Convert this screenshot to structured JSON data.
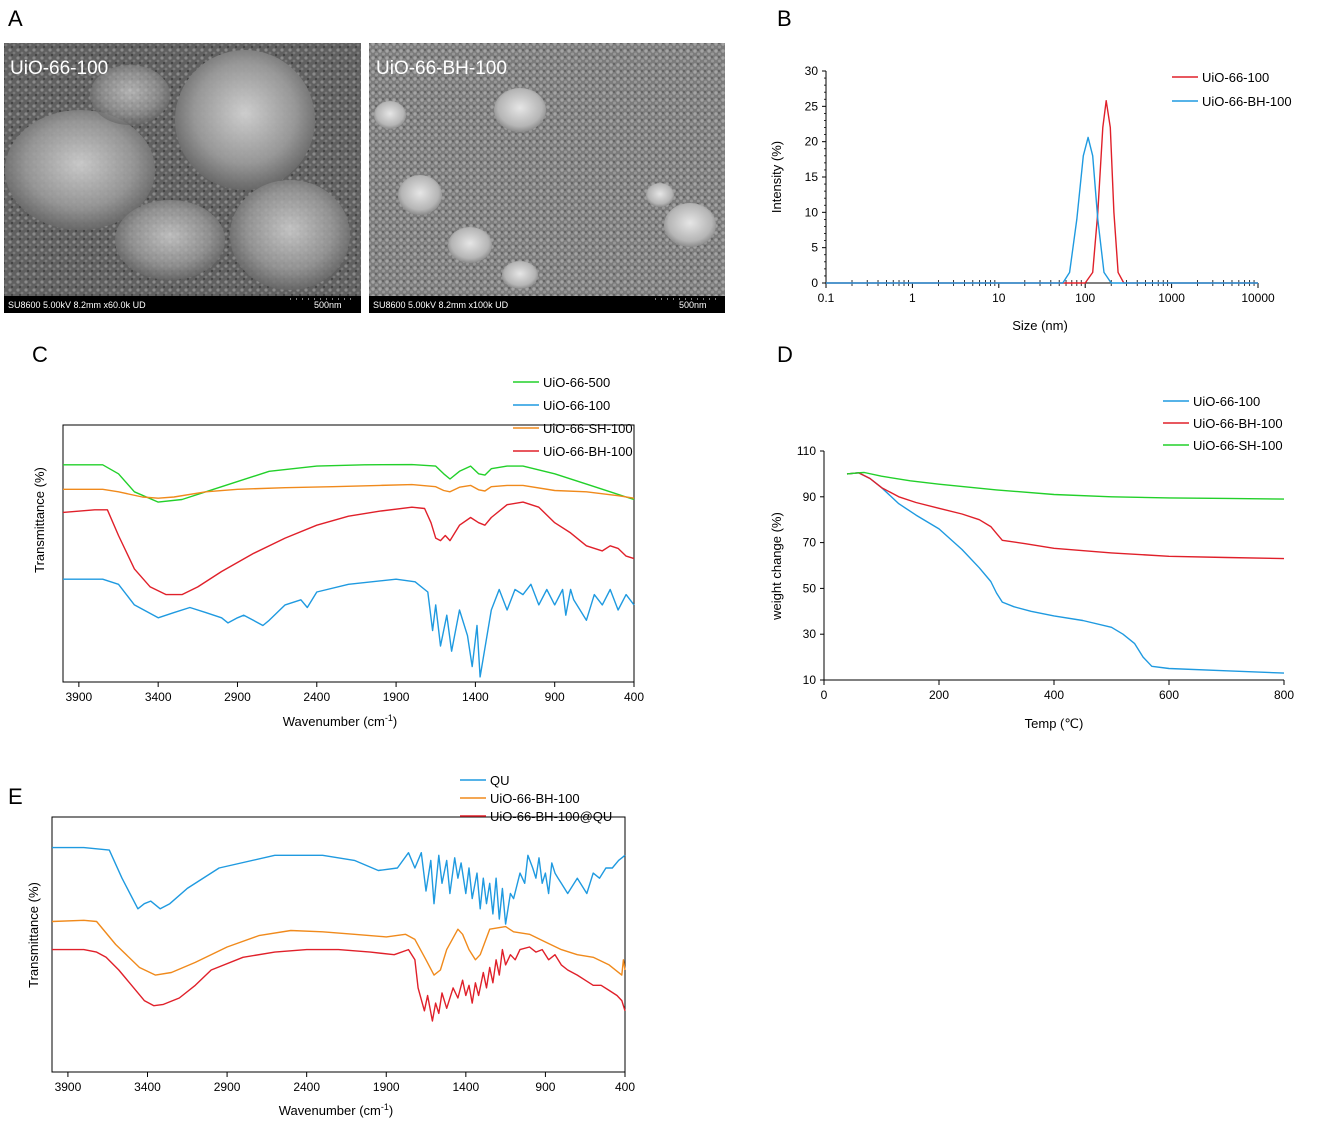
{
  "panels": {
    "A": "A",
    "B": "B",
    "C": "C",
    "D": "D",
    "E": "E"
  },
  "sem": [
    {
      "label": "UiO-66-100",
      "info": "SU8600 5.00kV 8.2mm x60.0k UD",
      "scale": "500nm"
    },
    {
      "label": "UiO-66-BH-100",
      "info": "SU8600 5.00kV 8.2mm x100k UD",
      "scale": "500nm"
    }
  ],
  "colors": {
    "red": "#e0202a",
    "blue": "#1f9ae0",
    "green": "#22d02a",
    "orange": "#f08a1c"
  },
  "chart_data": [
    {
      "panel": "B",
      "type": "line",
      "xlabel": "Size (nm)",
      "ylabel": "Intensity (%)",
      "xscale": "log",
      "xlim": [
        0.1,
        10000
      ],
      "ylim": [
        0,
        30
      ],
      "xticks": [
        "0.1",
        "1",
        "10",
        "100",
        "1000",
        "10000"
      ],
      "yticks": [
        "0",
        "5",
        "10",
        "15",
        "20",
        "25",
        "30"
      ],
      "legend": "top-right",
      "series": [
        {
          "name": "UiO-66-100",
          "color": "#e0202a",
          "x": [
            0.1,
            100,
            122,
            140,
            160,
            175,
            195,
            215,
            240,
            280,
            10000
          ],
          "y": [
            0,
            0,
            1.5,
            10,
            22,
            25.8,
            22,
            10,
            1.5,
            0,
            0
          ]
        },
        {
          "name": "UiO-66-BH-100",
          "color": "#1f9ae0",
          "x": [
            0.1,
            55,
            66,
            80,
            95,
            108,
            122,
            140,
            165,
            200,
            10000
          ],
          "y": [
            0,
            0,
            1.5,
            9,
            18,
            20.6,
            18,
            9,
            1.5,
            0,
            0
          ]
        }
      ]
    },
    {
      "panel": "C",
      "type": "line",
      "xlabel": "Wavenumber (cm",
      "xlabel_sup": "-1",
      "xlabel_tail": ")",
      "ylabel": "Transmittance (%)",
      "xlim": [
        4000,
        400
      ],
      "ylim": [
        0,
        100
      ],
      "xticks": [
        "3900",
        "3400",
        "2900",
        "2400",
        "1900",
        "1400",
        "900",
        "400"
      ],
      "legend": "top-right",
      "series": [
        {
          "name": "UiO-66-500",
          "color": "#22d02a",
          "x": [
            4000,
            3750,
            3650,
            3550,
            3400,
            3250,
            3000,
            2700,
            2400,
            2100,
            1800,
            1650,
            1600,
            1560,
            1500,
            1430,
            1380,
            1340,
            1300,
            1200,
            1100,
            900,
            700,
            550,
            450,
            400
          ],
          "y": [
            84.5,
            84.5,
            81,
            74,
            70,
            71,
            76,
            82,
            84,
            84.5,
            84.6,
            84,
            81,
            79,
            82,
            84,
            81,
            80.5,
            83,
            84,
            84,
            81,
            77,
            74,
            72,
            71
          ]
        },
        {
          "name": "UiO-66-100",
          "color": "#1f9ae0",
          "x": [
            4000,
            3750,
            3650,
            3550,
            3400,
            3300,
            3200,
            3100,
            3000,
            2960,
            2900,
            2860,
            2800,
            2740,
            2700,
            2600,
            2500,
            2460,
            2400,
            2200,
            1900,
            1780,
            1700,
            1670,
            1650,
            1620,
            1580,
            1550,
            1500,
            1450,
            1420,
            1390,
            1370,
            1300,
            1250,
            1200,
            1150,
            1100,
            1050,
            1000,
            950,
            900,
            850,
            830,
            800,
            780,
            700,
            650,
            600,
            550,
            500,
            450,
            400
          ],
          "y": [
            40,
            40,
            38,
            30,
            25,
            27,
            29,
            27,
            25,
            23,
            25,
            26,
            24,
            22,
            24,
            30,
            32,
            29,
            35,
            38,
            40,
            39,
            35,
            20,
            30,
            14,
            26,
            12,
            28,
            18,
            6,
            22,
            2,
            28,
            36,
            28,
            36,
            34,
            38,
            30,
            36,
            30,
            36,
            26,
            36,
            32,
            24,
            34,
            30,
            36,
            28,
            34,
            30
          ]
        },
        {
          "name": "UiO-66-SH-100",
          "color": "#f08a1c",
          "x": [
            4000,
            3750,
            3650,
            3500,
            3400,
            3300,
            3100,
            2900,
            2600,
            2300,
            2000,
            1800,
            1650,
            1600,
            1560,
            1500,
            1430,
            1380,
            1340,
            1300,
            1200,
            1100,
            900,
            700,
            500,
            400
          ],
          "y": [
            75,
            75,
            74,
            72,
            71.5,
            72,
            74,
            75,
            75.6,
            76,
            76.5,
            76.8,
            76,
            74.5,
            74,
            75.8,
            76.5,
            74.8,
            74.3,
            76,
            76.5,
            76.5,
            74.5,
            74,
            72.5,
            71.5
          ]
        },
        {
          "name": "UiO-66-BH-100",
          "color": "#e0202a",
          "x": [
            4000,
            3800,
            3720,
            3650,
            3550,
            3450,
            3350,
            3250,
            3150,
            3000,
            2800,
            2600,
            2400,
            2200,
            2000,
            1800,
            1720,
            1680,
            1650,
            1620,
            1590,
            1560,
            1500,
            1430,
            1380,
            1340,
            1300,
            1200,
            1100,
            1000,
            900,
            800,
            700,
            600,
            550,
            500,
            450,
            400
          ],
          "y": [
            66,
            67,
            67,
            57,
            44,
            37,
            34,
            34,
            37,
            43,
            50,
            56,
            61,
            64.5,
            66.5,
            68,
            67.5,
            62,
            56,
            55,
            57,
            55,
            61,
            64,
            62,
            61,
            64,
            69,
            70,
            68,
            62,
            58,
            53,
            51,
            53,
            52,
            49,
            48
          ]
        }
      ]
    },
    {
      "panel": "D",
      "type": "line",
      "xlabel": "Temp (℃)",
      "ylabel": "weight change (%)",
      "xlim": [
        0,
        800
      ],
      "ylim": [
        10,
        110
      ],
      "xticks": [
        "0",
        "200",
        "400",
        "600",
        "800"
      ],
      "yticks": [
        "10",
        "30",
        "50",
        "70",
        "90",
        "110"
      ],
      "legend": "top-right",
      "series": [
        {
          "name": "UiO-66-100",
          "color": "#1f9ae0",
          "x": [
            40,
            60,
            80,
            100,
            130,
            160,
            200,
            240,
            270,
            290,
            300,
            310,
            330,
            360,
            400,
            450,
            500,
            520,
            540,
            555,
            570,
            600,
            700,
            800
          ],
          "y": [
            100,
            100.5,
            98,
            94,
            87,
            82,
            76,
            67,
            59,
            53,
            48,
            44,
            42,
            40,
            38,
            36,
            33,
            30,
            26,
            20,
            16,
            15,
            14,
            13
          ]
        },
        {
          "name": "UiO-66-BH-100",
          "color": "#e0202a",
          "x": [
            40,
            60,
            80,
            100,
            130,
            160,
            200,
            240,
            270,
            290,
            300,
            310,
            350,
            400,
            500,
            600,
            700,
            800
          ],
          "y": [
            100,
            100.5,
            98,
            94,
            90,
            87.5,
            85,
            82.5,
            80,
            77,
            74,
            71,
            69.5,
            67.5,
            65.5,
            64,
            63.5,
            63
          ]
        },
        {
          "name": "UiO-66-SH-100",
          "color": "#22d02a",
          "x": [
            40,
            60,
            70,
            100,
            150,
            200,
            300,
            400,
            500,
            600,
            700,
            800
          ],
          "y": [
            100,
            100.5,
            100.6,
            99,
            97,
            95.5,
            93,
            91,
            90,
            89.5,
            89.3,
            89
          ]
        }
      ]
    },
    {
      "panel": "E",
      "type": "line",
      "xlabel": "Wavenumber (cm",
      "xlabel_sup": "-1",
      "xlabel_tail": ")",
      "ylabel": "Transmittance (%)",
      "xlim": [
        4000,
        400
      ],
      "ylim": [
        0,
        100
      ],
      "xticks": [
        "3900",
        "3400",
        "2900",
        "2400",
        "1900",
        "1400",
        "900",
        "400"
      ],
      "legend": "top-right",
      "series": [
        {
          "name": "QU",
          "color": "#1f9ae0",
          "x": [
            4000,
            3800,
            3640,
            3560,
            3460,
            3420,
            3380,
            3320,
            3260,
            3150,
            2950,
            2600,
            2300,
            2100,
            1950,
            1830,
            1760,
            1720,
            1680,
            1650,
            1620,
            1600,
            1570,
            1550,
            1520,
            1500,
            1470,
            1450,
            1430,
            1400,
            1380,
            1360,
            1330,
            1310,
            1290,
            1270,
            1250,
            1230,
            1210,
            1190,
            1170,
            1150,
            1120,
            1100,
            1060,
            1030,
            1010,
            980,
            960,
            940,
            920,
            900,
            880,
            860,
            840,
            820,
            800,
            760,
            700,
            640,
            600,
            560,
            520,
            480,
            440,
            400
          ],
          "y": [
            88,
            88,
            87,
            76,
            64,
            66,
            67,
            64,
            66,
            72,
            80,
            85,
            85,
            83,
            79,
            80,
            86,
            80,
            86,
            71,
            83,
            66,
            85,
            74,
            83,
            70,
            84,
            76,
            82,
            70,
            80,
            68,
            78,
            64,
            76,
            66,
            74,
            62,
            76,
            60,
            72,
            58,
            70,
            68,
            78,
            74,
            85,
            80,
            76,
            84,
            74,
            78,
            70,
            82,
            78,
            76,
            74,
            70,
            76,
            70,
            78,
            76,
            80,
            80,
            83,
            85
          ]
        },
        {
          "name": "UiO-66-BH-100",
          "color": "#f08a1c",
          "x": [
            4000,
            3800,
            3720,
            3600,
            3450,
            3350,
            3250,
            3100,
            2900,
            2700,
            2500,
            2300,
            2100,
            1900,
            1780,
            1720,
            1650,
            1600,
            1560,
            1520,
            1450,
            1420,
            1380,
            1340,
            1310,
            1250,
            1150,
            1100,
            1000,
            900,
            800,
            700,
            600,
            500,
            420,
            410,
            400
          ],
          "y": [
            59,
            59.5,
            59,
            50,
            41,
            38,
            39,
            43,
            49,
            53.5,
            55.5,
            55,
            54,
            53,
            54,
            52,
            44,
            38,
            40,
            48,
            56,
            54,
            48,
            44,
            46,
            56,
            57,
            55,
            54,
            51,
            48,
            46,
            45,
            42,
            38,
            44,
            40
          ]
        },
        {
          "name": "UiO-66-BH-100@QU",
          "color": "#e0202a",
          "x": [
            4000,
            3800,
            3720,
            3660,
            3580,
            3500,
            3420,
            3360,
            3300,
            3200,
            3100,
            3000,
            2800,
            2600,
            2400,
            2200,
            2000,
            1850,
            1760,
            1720,
            1700,
            1660,
            1640,
            1610,
            1590,
            1570,
            1550,
            1520,
            1480,
            1450,
            1420,
            1400,
            1380,
            1360,
            1340,
            1320,
            1290,
            1270,
            1250,
            1230,
            1210,
            1190,
            1170,
            1150,
            1120,
            1090,
            1060,
            1000,
            960,
            920,
            880,
            840,
            800,
            760,
            700,
            650,
            600,
            550,
            500,
            450,
            420,
            400
          ],
          "y": [
            48,
            48,
            47,
            45,
            40,
            34,
            28,
            26,
            26.5,
            29,
            34,
            40,
            45,
            47,
            48,
            48,
            47,
            46,
            48,
            44,
            33,
            24,
            30,
            20,
            27,
            23,
            31,
            25,
            33,
            29,
            36,
            30,
            34,
            27,
            35,
            30,
            39,
            33,
            41,
            35,
            44,
            38,
            48,
            42,
            46,
            44,
            48,
            49,
            47,
            48,
            44,
            46,
            42,
            40,
            38,
            36,
            34,
            34,
            32,
            30,
            28,
            24
          ]
        }
      ]
    }
  ]
}
